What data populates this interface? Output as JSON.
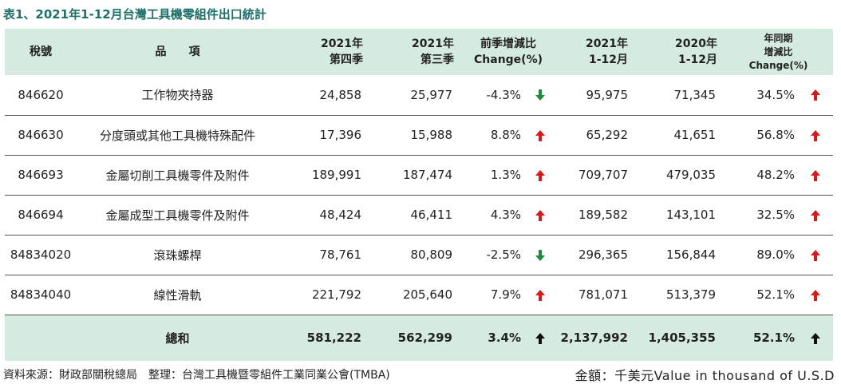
{
  "title": "表1、2021年1-12月台灣工具機零組件出口統計",
  "colors": {
    "header_bg": "#d6ebdf",
    "title": "#1d6f6a",
    "up": "#d61a1a",
    "down": "#1f8a3a",
    "total_arrow": "#111111"
  },
  "headers": {
    "code": "稅號",
    "item": "品　　項",
    "q4_l1": "2021年",
    "q4_l2": "第四季",
    "q3_l1": "2021年",
    "q3_l2": "第三季",
    "qoq_l1": "前季增減比",
    "qoq_l2": "Change(%)",
    "y2021_l1": "2021年",
    "y2021_l2": "1-12月",
    "y2020_l1": "2020年",
    "y2020_l2": "1-12月",
    "yoy_l1": "年同期",
    "yoy_l2": "增減比",
    "yoy_l3": "Change(%)"
  },
  "rows": [
    {
      "code": "846620",
      "item": "工作物夾持器",
      "q4": "24,858",
      "q3": "25,977",
      "qoq": "-4.3%",
      "qoq_dir": "down",
      "y2021": "95,975",
      "y2020": "71,345",
      "yoy": "34.5%",
      "yoy_dir": "up"
    },
    {
      "code": "846630",
      "item": "分度頭或其他工具機特殊配件",
      "q4": "17,396",
      "q3": "15,988",
      "qoq": "8.8%",
      "qoq_dir": "up",
      "y2021": "65,292",
      "y2020": "41,651",
      "yoy": "56.8%",
      "yoy_dir": "up"
    },
    {
      "code": "846693",
      "item": "金屬切削工具機零件及附件",
      "q4": "189,991",
      "q3": "187,474",
      "qoq": "1.3%",
      "qoq_dir": "up",
      "y2021": "709,707",
      "y2020": "479,035",
      "yoy": "48.2%",
      "yoy_dir": "up"
    },
    {
      "code": "846694",
      "item": "金屬成型工具機零件及附件",
      "q4": "48,424",
      "q3": "46,411",
      "qoq": "4.3%",
      "qoq_dir": "up",
      "y2021": "189,582",
      "y2020": "143,101",
      "yoy": "32.5%",
      "yoy_dir": "up"
    },
    {
      "code": "84834020",
      "item": "滾珠螺桿",
      "q4": "78,761",
      "q3": "80,809",
      "qoq": "-2.5%",
      "qoq_dir": "down",
      "y2021": "296,365",
      "y2020": "156,844",
      "yoy": "89.0%",
      "yoy_dir": "up"
    },
    {
      "code": "84834040",
      "item": "線性滑軌",
      "q4": "221,792",
      "q3": "205,640",
      "qoq": "7.9%",
      "qoq_dir": "up",
      "y2021": "781,071",
      "y2020": "513,379",
      "yoy": "52.1%",
      "yoy_dir": "up"
    }
  ],
  "total": {
    "label": "總和",
    "q4": "581,222",
    "q3": "562,299",
    "qoq": "3.4%",
    "qoq_dir": "up",
    "y2021": "2,137,992",
    "y2020": "1,405,355",
    "yoy": "52.1%",
    "yoy_dir": "up"
  },
  "footer": {
    "source": "資料來源：財政部關稅總局　整理：台灣工具機暨零組件工業同業公會(TMBA)",
    "unit": "金額：千美元Value in thousand of U.S.D"
  }
}
